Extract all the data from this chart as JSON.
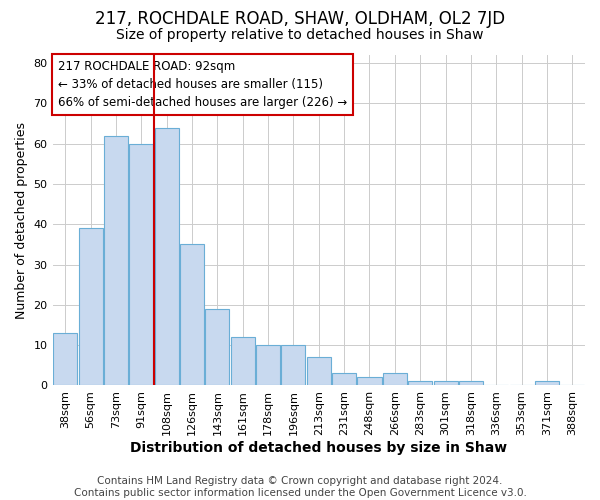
{
  "title": "217, ROCHDALE ROAD, SHAW, OLDHAM, OL2 7JD",
  "subtitle": "Size of property relative to detached houses in Shaw",
  "xlabel": "Distribution of detached houses by size in Shaw",
  "ylabel": "Number of detached properties",
  "categories": [
    "38sqm",
    "56sqm",
    "73sqm",
    "91sqm",
    "108sqm",
    "126sqm",
    "143sqm",
    "161sqm",
    "178sqm",
    "196sqm",
    "213sqm",
    "231sqm",
    "248sqm",
    "266sqm",
    "283sqm",
    "301sqm",
    "318sqm",
    "336sqm",
    "353sqm",
    "371sqm",
    "388sqm"
  ],
  "values": [
    13,
    39,
    62,
    60,
    64,
    35,
    19,
    12,
    10,
    10,
    7,
    3,
    2,
    3,
    1,
    1,
    1,
    0,
    0,
    1,
    0
  ],
  "bar_color": "#c8d9ef",
  "bar_edge_color": "#6aaed6",
  "vline_color": "#cc0000",
  "vline_x": 3.5,
  "annotation_text": "217 ROCHDALE ROAD: 92sqm\n← 33% of detached houses are smaller (115)\n66% of semi-detached houses are larger (226) →",
  "annotation_box_color": "#ffffff",
  "annotation_box_edge_color": "#cc0000",
  "ylim": [
    0,
    82
  ],
  "yticks": [
    0,
    10,
    20,
    30,
    40,
    50,
    60,
    70,
    80
  ],
  "footer": "Contains HM Land Registry data © Crown copyright and database right 2024.\nContains public sector information licensed under the Open Government Licence v3.0.",
  "bg_color": "#ffffff",
  "plot_bg_color": "#ffffff",
  "grid_color": "#cccccc",
  "title_fontsize": 12,
  "subtitle_fontsize": 10,
  "xlabel_fontsize": 10,
  "ylabel_fontsize": 9,
  "tick_fontsize": 8,
  "annotation_fontsize": 8.5,
  "footer_fontsize": 7.5
}
